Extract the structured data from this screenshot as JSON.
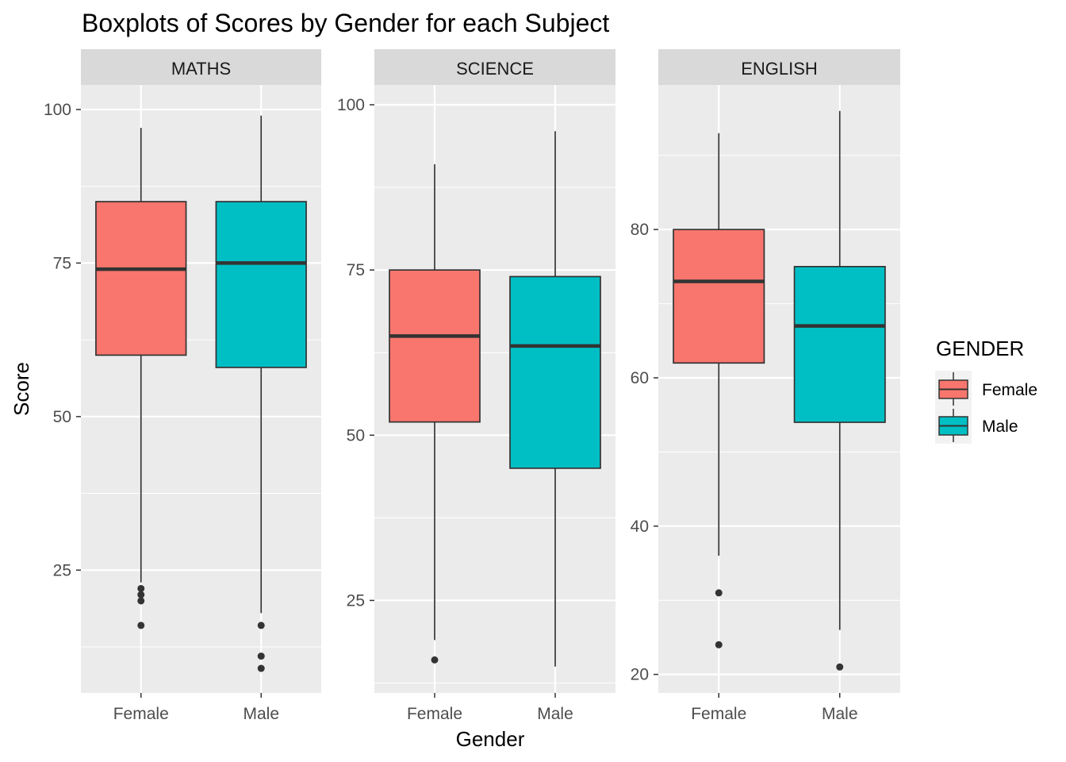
{
  "chart_data": {
    "type": "boxplot",
    "title": "Boxplots of Scores by Gender for each Subject",
    "xlabel": "Gender",
    "ylabel": "Score",
    "categories": [
      "Female",
      "Male"
    ],
    "colors": {
      "Female": "#F8766D",
      "Male": "#00BFC4"
    },
    "legend": {
      "title": "GENDER",
      "position": "right",
      "entries": [
        {
          "label": "Female",
          "color": "#F8766D"
        },
        {
          "label": "Male",
          "color": "#00BFC4"
        }
      ]
    },
    "grid": true,
    "panels": [
      {
        "name": "MATHS",
        "ylim": [
          5,
          104
        ],
        "yticks": [
          25,
          50,
          75,
          100
        ],
        "boxes": [
          {
            "category": "Female",
            "low": 23,
            "q1": 60,
            "median": 74,
            "q3": 85,
            "high": 97,
            "outliers": [
              22,
              21,
              20,
              16
            ]
          },
          {
            "category": "Male",
            "low": 18,
            "q1": 58,
            "median": 75,
            "q3": 85,
            "high": 99,
            "outliers": [
              16,
              11,
              9
            ]
          }
        ]
      },
      {
        "name": "SCIENCE",
        "ylim": [
          11,
          103
        ],
        "yticks": [
          25,
          50,
          75,
          100
        ],
        "boxes": [
          {
            "category": "Female",
            "low": 19,
            "q1": 52,
            "median": 65,
            "q3": 75,
            "high": 91,
            "outliers": [
              16
            ]
          },
          {
            "category": "Male",
            "low": 15,
            "q1": 45,
            "median": 63.5,
            "q3": 74,
            "high": 96,
            "outliers": []
          }
        ]
      },
      {
        "name": "ENGLISH",
        "ylim": [
          17.5,
          99.5
        ],
        "yticks": [
          20,
          40,
          60,
          80
        ],
        "boxes": [
          {
            "category": "Female",
            "low": 36,
            "q1": 62,
            "median": 73,
            "q3": 80,
            "high": 93,
            "outliers": [
              31,
              24
            ]
          },
          {
            "category": "Male",
            "low": 26,
            "q1": 54,
            "median": 67,
            "q3": 75,
            "high": 96,
            "outliers": [
              21
            ]
          }
        ]
      }
    ]
  }
}
